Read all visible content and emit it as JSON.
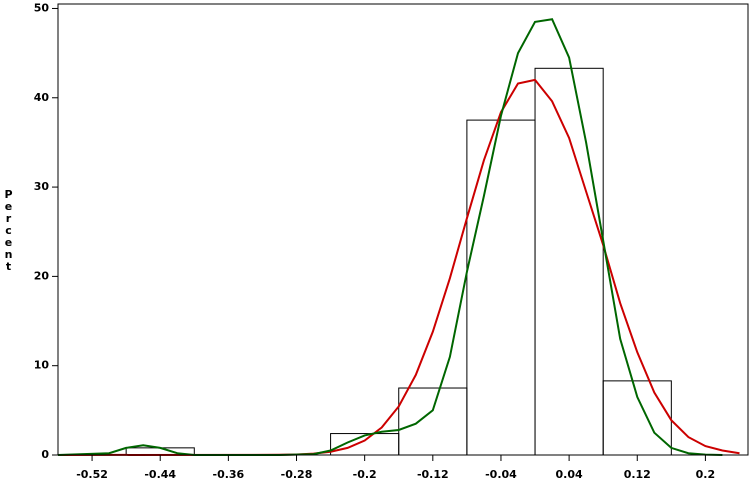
{
  "chart_data": {
    "type": "histogram",
    "ylabel": "Percent",
    "bins": [
      -0.48,
      -0.4,
      -0.32,
      -0.24,
      -0.16,
      -0.08,
      0,
      0.08,
      0.16
    ],
    "values": [
      0.8,
      0,
      0,
      2.4,
      7.5,
      37.5,
      43.3,
      8.3
    ],
    "bar_color": "#000000",
    "series": [
      {
        "color": "#cc0000",
        "x": [
          -0.56,
          -0.3,
          -0.28,
          -0.26,
          -0.24,
          -0.22,
          -0.2,
          -0.18,
          -0.16,
          -0.14,
          -0.12,
          -0.1,
          -0.08,
          -0.06,
          -0.04,
          -0.02,
          0,
          0.02,
          0.04,
          0.06,
          0.08,
          0.1,
          0.12,
          0.14,
          0.16,
          0.18,
          0.2,
          0.22,
          0.24
        ],
        "values": [
          0,
          0.02,
          0.06,
          0.16,
          0.37,
          0.8,
          1.62,
          3.08,
          5.43,
          8.97,
          13.8,
          19.8,
          26.5,
          33.0,
          38.4,
          41.6,
          42.0,
          39.6,
          35.5,
          29.5,
          23.5,
          17.0,
          11.5,
          7.0,
          3.9,
          2.0,
          1.0,
          0.5,
          0.2
        ]
      },
      {
        "color": "#006600",
        "x": [
          -0.56,
          -0.5,
          -0.48,
          -0.46,
          -0.44,
          -0.42,
          -0.4,
          -0.3,
          -0.26,
          -0.24,
          -0.22,
          -0.2,
          -0.18,
          -0.16,
          -0.14,
          -0.12,
          -0.1,
          -0.08,
          -0.06,
          -0.04,
          -0.02,
          0,
          0.02,
          0.04,
          0.06,
          0.08,
          0.1,
          0.12,
          0.14,
          0.16,
          0.18,
          0.2,
          0.22
        ],
        "values": [
          0,
          0.2,
          0.8,
          1.1,
          0.8,
          0.2,
          0,
          0,
          0.1,
          0.5,
          1.4,
          2.2,
          2.6,
          2.8,
          3.5,
          5.0,
          11.0,
          20.5,
          29.0,
          38.0,
          45.0,
          48.5,
          48.8,
          44.5,
          35.0,
          24.0,
          13.0,
          6.5,
          2.5,
          0.8,
          0.2,
          0.05,
          0
        ]
      }
    ],
    "xlim": [
      -0.56,
      0.25
    ],
    "ylim": [
      0,
      50.5
    ],
    "xticks": [
      -0.52,
      -0.44,
      -0.36,
      -0.28,
      -0.2,
      -0.12,
      -0.04,
      0.04,
      0.12,
      0.2
    ],
    "yticks": [
      0,
      10,
      20,
      30,
      40,
      50
    ]
  }
}
